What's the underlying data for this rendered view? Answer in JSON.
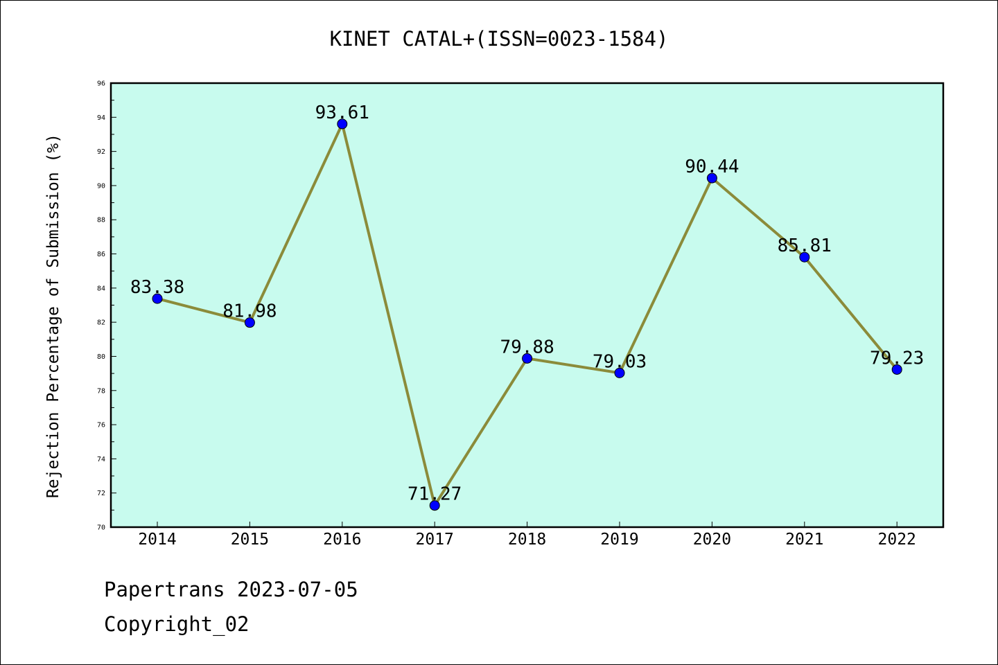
{
  "chart_data": {
    "type": "line",
    "title": "KINET CATAL+(ISSN=0023-1584)",
    "xlabel": "",
    "ylabel": "Rejection Percentage of Submission (%)",
    "categories": [
      "2014",
      "2015",
      "2016",
      "2017",
      "2018",
      "2019",
      "2020",
      "2021",
      "2022"
    ],
    "series": [
      {
        "values": [
          83.38,
          81.98,
          93.61,
          71.27,
          79.88,
          79.03,
          90.44,
          85.81,
          79.23
        ],
        "labels": [
          "83.38",
          "81.98",
          "93.61",
          "71.27",
          "79.88",
          "79.03",
          "90.44",
          "85.81",
          "79.23"
        ]
      }
    ],
    "ylim": [
      70,
      96
    ],
    "yticks": [
      "70",
      "72",
      "74",
      "76",
      "78",
      "80",
      "82",
      "84",
      "86",
      "88",
      "90",
      "92",
      "94",
      "96"
    ],
    "grid": false,
    "colors": {
      "plot_background": "#c8fbee",
      "line": "#8b8b3a",
      "marker": "#0000ff"
    }
  },
  "footer": {
    "source": "Papertrans 2023-07-05",
    "copyright": "Copyright_02"
  }
}
